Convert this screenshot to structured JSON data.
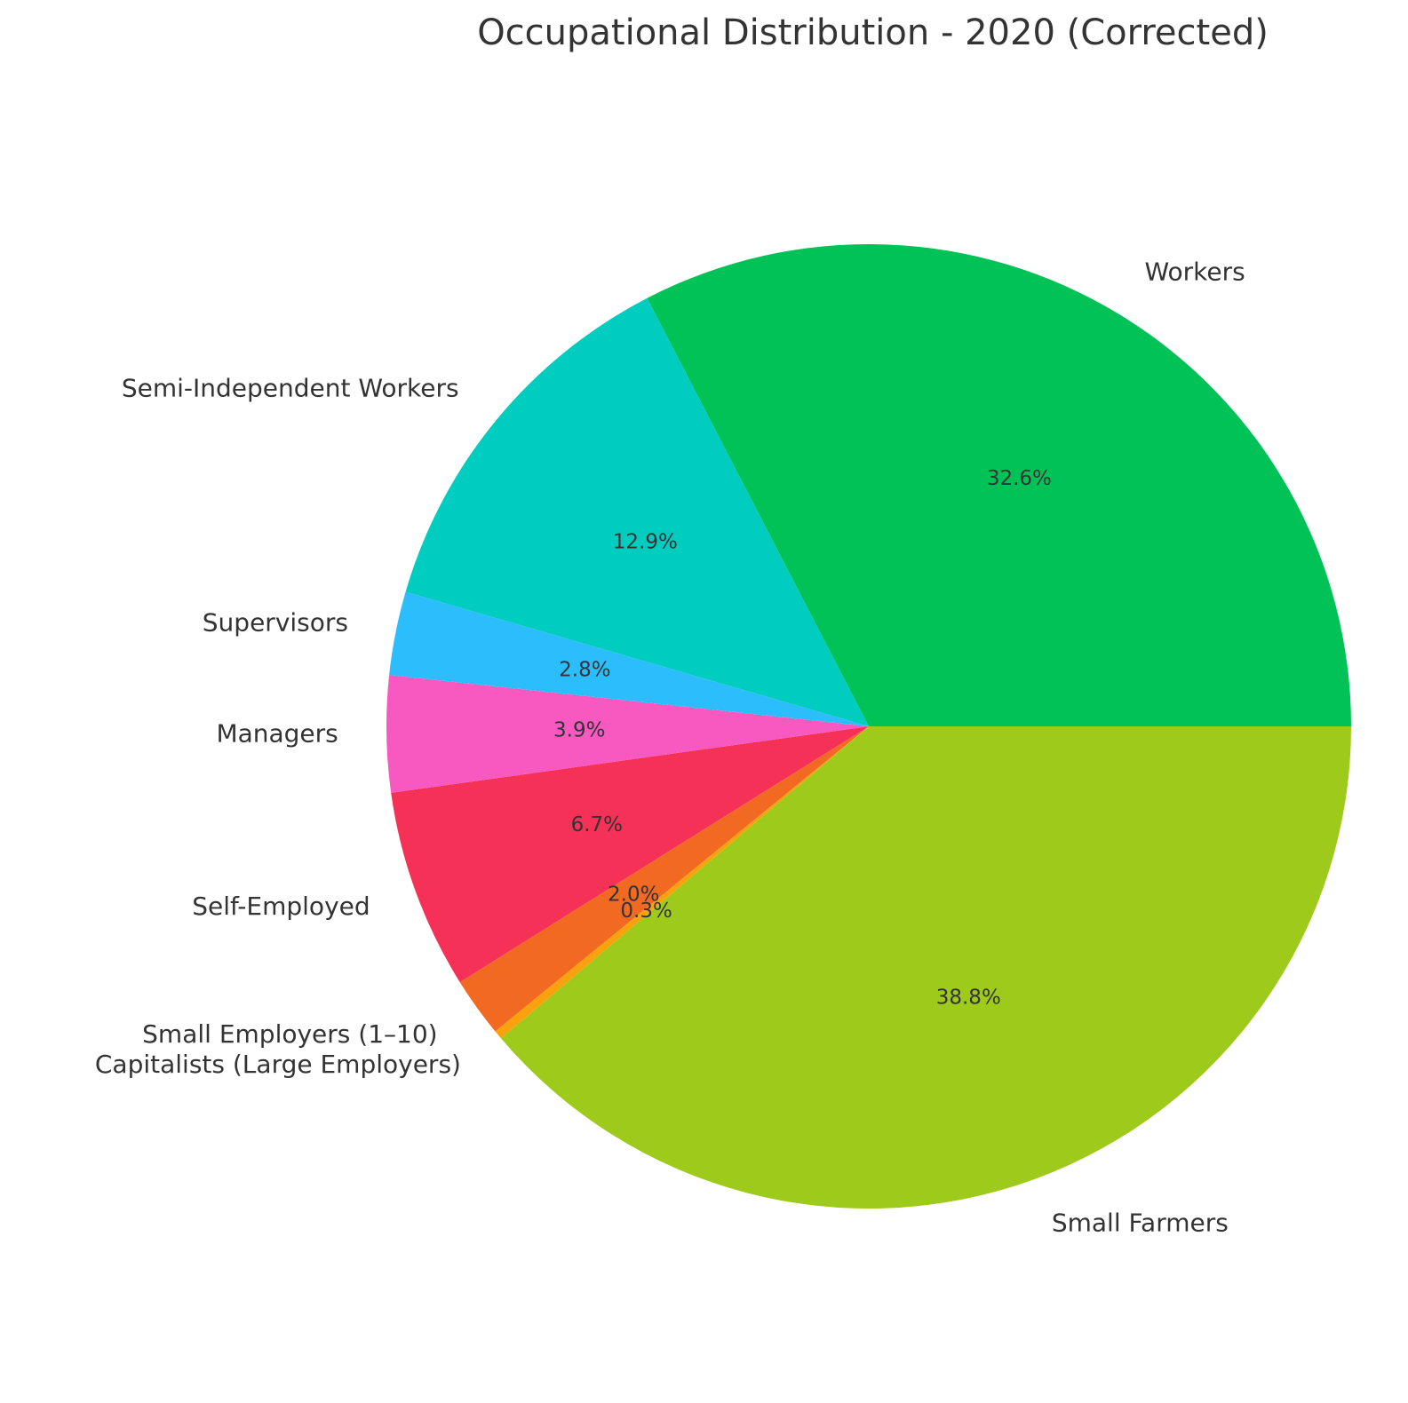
{
  "chart_data": {
    "type": "pie",
    "title": "Occupational Distribution - 2020 (Corrected)",
    "start_angle_deg": 0,
    "direction": "clockwise",
    "slices": [
      {
        "label": "Small Farmers",
        "value": 38.8,
        "pct_label": "38.8%",
        "color": "#9ECA1C"
      },
      {
        "label": "Capitalists (Large Employers)",
        "value": 0.3,
        "pct_label": "0.3%",
        "color": "#FAA10E"
      },
      {
        "label": "Small Employers (1–10)",
        "value": 2.0,
        "pct_label": "2.0%",
        "color": "#F26A21"
      },
      {
        "label": "Self-Employed",
        "value": 6.7,
        "pct_label": "6.7%",
        "color": "#F53157"
      },
      {
        "label": "Managers",
        "value": 3.9,
        "pct_label": "3.9%",
        "color": "#F759C0"
      },
      {
        "label": "Supervisors",
        "value": 2.8,
        "pct_label": "2.8%",
        "color": "#2CBEFC"
      },
      {
        "label": "Semi-Independent Workers",
        "value": 12.9,
        "pct_label": "12.9%",
        "color": "#00CDC0"
      },
      {
        "label": "Workers",
        "value": 32.6,
        "pct_label": "32.6%",
        "color": "#00C257"
      }
    ]
  }
}
